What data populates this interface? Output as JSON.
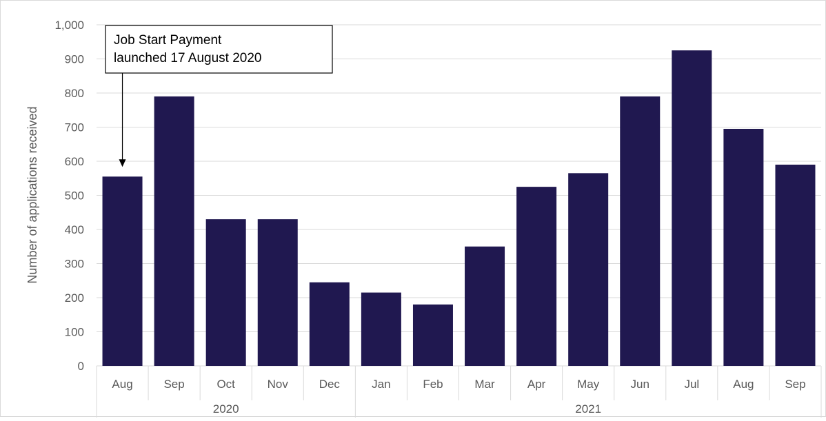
{
  "chart_data": {
    "type": "bar",
    "title": "",
    "xlabel": "",
    "ylabel": "Number of applications received",
    "ylim": [
      0,
      1000
    ],
    "yticks": [
      0,
      100,
      200,
      300,
      400,
      500,
      600,
      700,
      800,
      900,
      1000
    ],
    "ytick_labels": [
      "0",
      "100",
      "200",
      "300",
      "400",
      "500",
      "600",
      "700",
      "800",
      "900",
      "1,000"
    ],
    "categories": [
      "Aug",
      "Sep",
      "Oct",
      "Nov",
      "Dec",
      "Jan",
      "Feb",
      "Mar",
      "Apr",
      "May",
      "Jun",
      "Jul",
      "Aug",
      "Sep"
    ],
    "groups": [
      {
        "label": "2020",
        "count": 5
      },
      {
        "label": "2021",
        "count": 9
      }
    ],
    "values": [
      555,
      790,
      430,
      430,
      245,
      215,
      180,
      350,
      525,
      565,
      790,
      925,
      695,
      590
    ],
    "bar_color": "#201850",
    "grid": true,
    "annotation": {
      "lines": [
        "Job Start Payment",
        "launched 17 August 2020"
      ],
      "target_index": 0
    }
  }
}
